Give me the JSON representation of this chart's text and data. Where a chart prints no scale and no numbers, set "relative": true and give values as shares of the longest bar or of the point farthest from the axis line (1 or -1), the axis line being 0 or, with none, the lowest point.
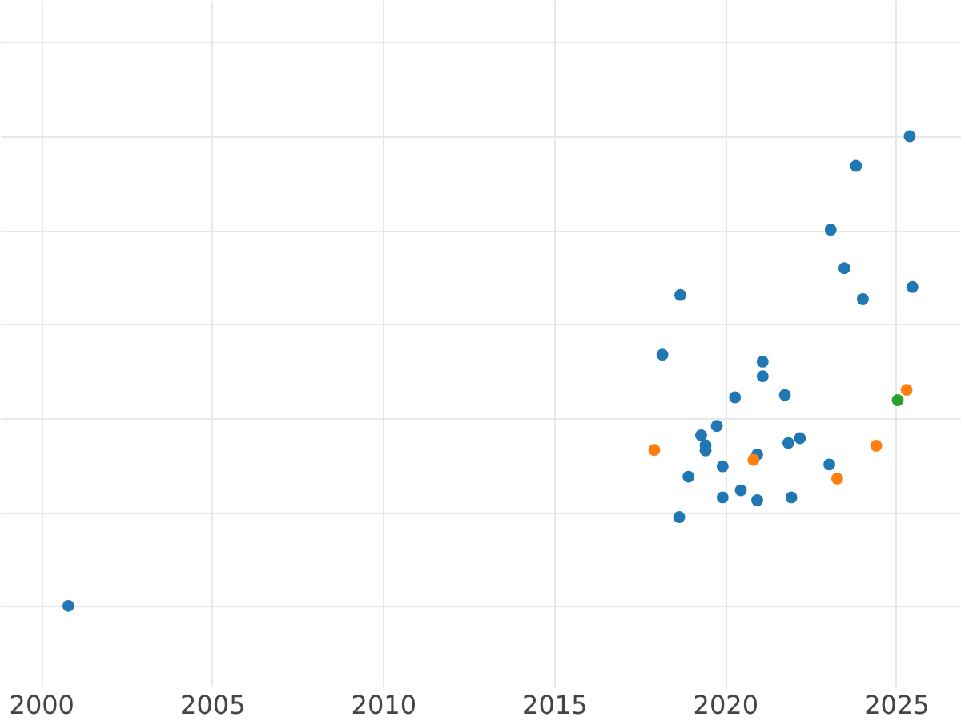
{
  "chart_data": {
    "type": "scatter",
    "relative": true,
    "grid": true,
    "tick_labels": "x",
    "marker": "circle",
    "xlim": [
      1998.8,
      2026.9
    ],
    "xticks": [
      2000,
      2005,
      2010,
      2015,
      2020,
      2025
    ],
    "series": [
      {
        "color": "#1f77b4",
        "x": [
          2018.17,
          2021.1,
          2021.1,
          2020.29,
          2021.75,
          2019.76,
          2019.3,
          2019.43,
          2019.43,
          2020.94,
          2021.85,
          2022.19,
          2019.93,
          2018.93,
          2023.05,
          2019.93,
          2020.46,
          2020.94,
          2021.94,
          2018.66,
          2025.4,
          2023.83,
          2023.09,
          2023.49,
          2024.03,
          2025.48,
          2018.69,
          2000.8
        ],
        "values": [
          0.535,
          0.52,
          0.489,
          0.444,
          0.449,
          0.383,
          0.363,
          0.342,
          0.331,
          0.322,
          0.347,
          0.357,
          0.297,
          0.275,
          0.301,
          0.231,
          0.246,
          0.225,
          0.231,
          0.189,
          1,
          0.937,
          0.801,
          0.719,
          0.653,
          0.679,
          0.662,
          0
        ]
      },
      {
        "color": "#ff7f0e",
        "x": [
          2017.93,
          2020.83,
          2024.42,
          2023.28,
          2025.31
        ],
        "values": [
          0.332,
          0.311,
          0.341,
          0.271,
          0.46
        ]
      },
      {
        "color": "#2ca02c",
        "x": [
          2025.05
        ],
        "values": [
          0.438
        ]
      }
    ]
  }
}
